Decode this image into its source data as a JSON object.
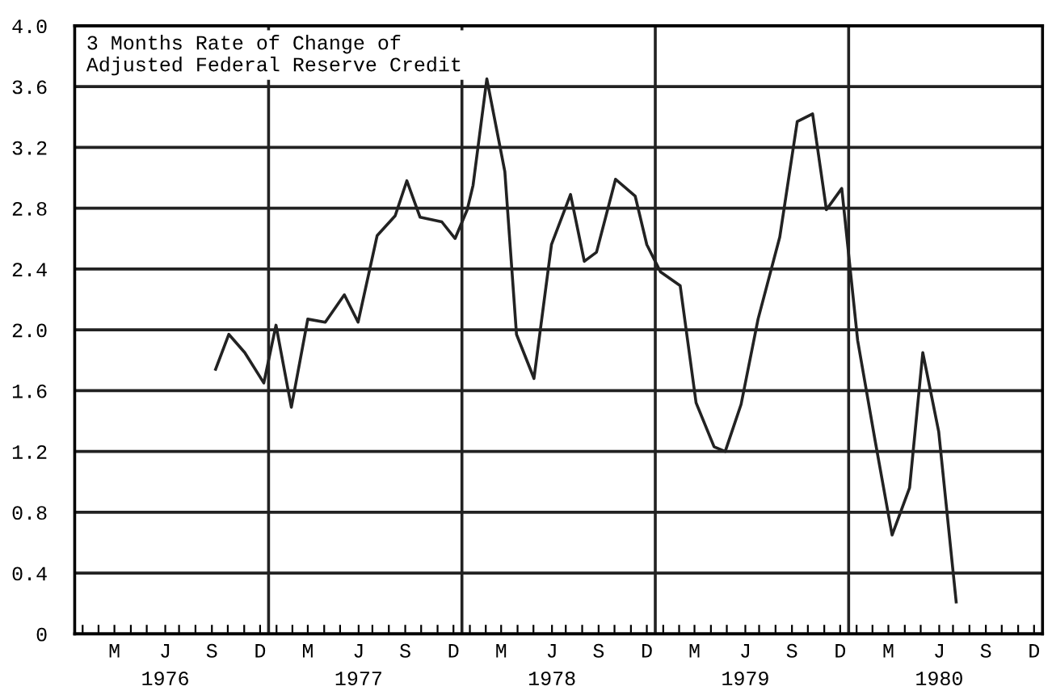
{
  "chart_data": {
    "type": "line",
    "title": "3 Months Rate of Change of\nAdjusted Federal Reserve Credit",
    "x": [
      "1976-09-23",
      "1976-10-18",
      "1976-11-17",
      "1976-12-23",
      "1977-01-15",
      "1977-02-13",
      "1977-03-16",
      "1977-04-18",
      "1977-05-24",
      "1977-06-19",
      "1977-07-25",
      "1977-08-28",
      "1977-09-19",
      "1977-10-14",
      "1977-11-24",
      "1977-12-19",
      "1978-01-11",
      "1978-01-22",
      "1978-02-17",
      "1978-03-23",
      "1978-04-14",
      "1978-05-17",
      "1978-06-19",
      "1978-07-25",
      "1978-08-20",
      "1978-09-12",
      "1978-10-18",
      "1978-11-24",
      "1978-12-16",
      "1979-01-11",
      "1979-02-17",
      "1979-03-19",
      "1979-04-22",
      "1979-05-13",
      "1979-06-12",
      "1979-07-14",
      "1979-08-24",
      "1979-09-26",
      "1979-10-25",
      "1979-11-20",
      "1979-12-19",
      "1980-01-18",
      "1980-02-20",
      "1980-03-23",
      "1980-04-25",
      "1980-05-20",
      "1980-06-19",
      "1980-07-22"
    ],
    "series": [
      {
        "color": "#222222",
        "values": [
          1.74,
          1.97,
          1.85,
          1.65,
          2.03,
          1.49,
          2.07,
          2.05,
          2.23,
          2.05,
          2.62,
          2.75,
          2.98,
          2.74,
          2.71,
          2.6,
          2.79,
          2.95,
          3.65,
          3.04,
          1.97,
          1.68,
          2.56,
          2.89,
          2.45,
          2.51,
          2.99,
          2.88,
          2.56,
          2.38,
          2.29,
          1.52,
          1.23,
          1.2,
          1.51,
          2.07,
          2.61,
          3.37,
          3.42,
          2.79,
          2.93,
          1.93,
          1.27,
          0.65,
          0.96,
          1.85,
          1.33,
          0.21
        ]
      }
    ],
    "xlim": [
      "1976-01-01",
      "1981-01-01"
    ],
    "ylim": [
      0,
      4
    ],
    "yticks": [
      0,
      {
        "value": 0.4,
        "label": "0.4"
      },
      {
        "value": 0.8,
        "label": "0.8"
      },
      {
        "value": 1.2,
        "label": "1.2"
      },
      {
        "value": 1.6,
        "label": "1.6"
      },
      {
        "value": 2.0,
        "label": "2.0"
      },
      {
        "value": 2.4,
        "label": "2.4"
      },
      {
        "value": 2.8,
        "label": "2.8"
      },
      {
        "value": 3.2,
        "label": "3.2"
      },
      {
        "value": 3.6,
        "label": "3.6"
      },
      {
        "value": 4.0,
        "label": "4.0"
      }
    ],
    "xticks": [
      {
        "value": "1976-01-16",
        "label": null
      },
      {
        "value": "1976-02-15",
        "label": null
      },
      {
        "value": "1976-03-16",
        "label": "M"
      },
      {
        "value": "1976-04-16",
        "label": null
      },
      {
        "value": "1976-05-16",
        "label": null
      },
      {
        "value": "1976-06-20",
        "label": "J\n1976"
      },
      {
        "value": "1976-07-16",
        "label": null
      },
      {
        "value": "1976-08-16",
        "label": null
      },
      {
        "value": "1976-09-16",
        "label": "S"
      },
      {
        "value": "1976-10-16",
        "label": null
      },
      {
        "value": "1976-11-16",
        "label": null
      },
      {
        "value": "1976-12-16",
        "label": "D"
      },
      {
        "value": "1977-01-16",
        "label": null
      },
      {
        "value": "1977-02-15",
        "label": null
      },
      {
        "value": "1977-03-16",
        "label": "M"
      },
      {
        "value": "1977-04-16",
        "label": null
      },
      {
        "value": "1977-05-16",
        "label": null
      },
      {
        "value": "1977-06-20",
        "label": "J\n1977"
      },
      {
        "value": "1977-07-16",
        "label": null
      },
      {
        "value": "1977-08-16",
        "label": null
      },
      {
        "value": "1977-09-16",
        "label": "S"
      },
      {
        "value": "1977-10-16",
        "label": null
      },
      {
        "value": "1977-11-16",
        "label": null
      },
      {
        "value": "1977-12-16",
        "label": "D"
      },
      {
        "value": "1978-01-16",
        "label": null
      },
      {
        "value": "1978-02-15",
        "label": null
      },
      {
        "value": "1978-03-16",
        "label": "M"
      },
      {
        "value": "1978-04-16",
        "label": null
      },
      {
        "value": "1978-05-16",
        "label": null
      },
      {
        "value": "1978-06-20",
        "label": "J\n1978"
      },
      {
        "value": "1978-07-16",
        "label": null
      },
      {
        "value": "1978-08-16",
        "label": null
      },
      {
        "value": "1978-09-16",
        "label": "S"
      },
      {
        "value": "1978-10-16",
        "label": null
      },
      {
        "value": "1978-11-16",
        "label": null
      },
      {
        "value": "1978-12-16",
        "label": "D"
      },
      {
        "value": "1979-01-16",
        "label": null
      },
      {
        "value": "1979-02-15",
        "label": null
      },
      {
        "value": "1979-03-16",
        "label": "M"
      },
      {
        "value": "1979-04-16",
        "label": null
      },
      {
        "value": "1979-05-16",
        "label": null
      },
      {
        "value": "1979-06-20",
        "label": "J\n1979"
      },
      {
        "value": "1979-07-16",
        "label": null
      },
      {
        "value": "1979-08-16",
        "label": null
      },
      {
        "value": "1979-09-16",
        "label": "S"
      },
      {
        "value": "1979-10-16",
        "label": null
      },
      {
        "value": "1979-11-16",
        "label": null
      },
      {
        "value": "1979-12-16",
        "label": "D"
      },
      {
        "value": "1980-01-16",
        "label": null
      },
      {
        "value": "1980-02-15",
        "label": null
      },
      {
        "value": "1980-03-16",
        "label": "M"
      },
      {
        "value": "1980-04-16",
        "label": null
      },
      {
        "value": "1980-05-16",
        "label": null
      },
      {
        "value": "1980-06-20",
        "label": "J\n1980"
      },
      {
        "value": "1980-07-16",
        "label": null
      },
      {
        "value": "1980-08-16",
        "label": null
      },
      {
        "value": "1980-09-16",
        "label": "S"
      },
      {
        "value": "1980-10-16",
        "label": null
      },
      {
        "value": "1980-11-16",
        "label": null
      },
      {
        "value": "1980-12-16",
        "label": "D"
      }
    ],
    "ref_lines": [
      {
        "axis": "x",
        "value": "1977-01-01",
        "label": null
      },
      {
        "axis": "x",
        "value": "1978-01-01",
        "label": null
      },
      {
        "axis": "x",
        "value": "1979-01-01",
        "label": null
      },
      {
        "axis": "x",
        "value": "1980-01-01",
        "label": null
      }
    ],
    "grid": "y",
    "marker": "none",
    "line_style": "solid"
  }
}
